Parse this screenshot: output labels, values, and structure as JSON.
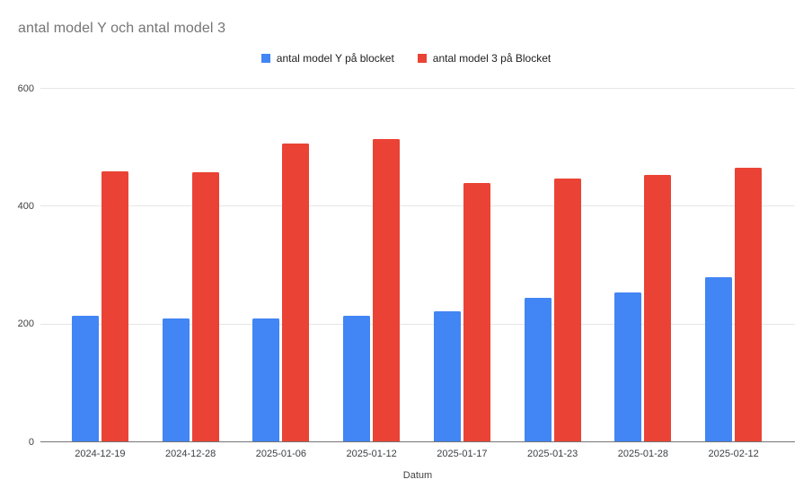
{
  "title": "antal model Y och antal model 3",
  "chart_data": {
    "type": "bar",
    "title": "antal model Y och antal model 3",
    "xlabel": "Datum",
    "ylabel": "",
    "ylim": [
      0,
      600
    ],
    "y_ticks": [
      0,
      200,
      400,
      600
    ],
    "grid": true,
    "legend_position": "top-center",
    "categories": [
      "2024-12-19",
      "2024-12-28",
      "2025-01-06",
      "2025-01-12",
      "2025-01-17",
      "2025-01-23",
      "2025-01-28",
      "2025-02-12"
    ],
    "series": [
      {
        "name": "antal model Y på blocket",
        "color": "#4285F4",
        "values": [
          214,
          210,
          210,
          215,
          222,
          245,
          254,
          280
        ]
      },
      {
        "name": "antal model 3 på Blocket",
        "color": "#EA4335",
        "values": [
          460,
          458,
          507,
          515,
          440,
          447,
          454,
          466
        ]
      }
    ]
  },
  "colors": {
    "background": "#ffffff",
    "title_text": "#757575",
    "legend_text": "#212121",
    "tick_text": "#424242",
    "gridline": "#e6e6e6",
    "axis_line": "#757575"
  }
}
